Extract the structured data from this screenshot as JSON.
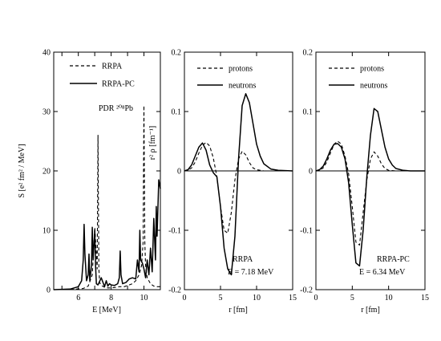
{
  "chart_data": [
    {
      "type": "line",
      "panel": "a",
      "xlabel": "E [MeV]",
      "ylabel": "S [e² fm² / MeV]",
      "xlim": [
        4.5,
        11
      ],
      "ylim": [
        0,
        40
      ],
      "xticks": [
        5,
        6,
        7,
        8,
        9,
        10
      ],
      "xtick_labels": [
        "",
        "6",
        "",
        "8",
        "",
        "10"
      ],
      "yticks": [
        0,
        10,
        20,
        30,
        40
      ],
      "ytick_labels": [
        "0",
        "10",
        "20",
        "30",
        "40"
      ],
      "legend_position": "top-right",
      "annotation": "PDR ²⁰⁸Pb",
      "series": [
        {
          "name": "RRPA",
          "style": "dashed",
          "x": [
            4.5,
            5.5,
            6.3,
            6.6,
            6.85,
            7.0,
            7.1,
            7.15,
            7.2,
            7.25,
            7.3,
            7.4,
            7.6,
            7.8,
            8.0,
            8.3,
            8.5,
            8.8,
            9.0,
            9.3,
            9.5,
            9.7,
            9.85,
            9.95,
            10.0,
            10.05,
            10.1,
            10.2,
            10.4,
            10.6,
            10.8,
            11.0
          ],
          "values": [
            0,
            0,
            0.2,
            0.6,
            2.5,
            10.5,
            6.0,
            3.5,
            26,
            3.5,
            1.2,
            0.7,
            0.4,
            0.3,
            0.3,
            0.4,
            0.5,
            0.5,
            0.7,
            1.0,
            1.5,
            2.5,
            4.0,
            8.0,
            31,
            8.0,
            4.0,
            2.0,
            1.0,
            0.6,
            0.5,
            0.5
          ]
        },
        {
          "name": "RRPA-PC",
          "style": "solid",
          "x": [
            4.5,
            5.5,
            6.0,
            6.2,
            6.3,
            6.35,
            6.4,
            6.5,
            6.6,
            6.65,
            6.7,
            6.8,
            6.85,
            6.9,
            7.0,
            7.05,
            7.1,
            7.2,
            7.4,
            7.6,
            7.7,
            7.8,
            7.9,
            8.0,
            8.2,
            8.4,
            8.5,
            8.55,
            8.6,
            8.7,
            8.9,
            9.1,
            9.3,
            9.5,
            9.6,
            9.7,
            9.75,
            9.8,
            9.9,
            10.0,
            10.1,
            10.2,
            10.3,
            10.4,
            10.5,
            10.6,
            10.7,
            10.75,
            10.8,
            10.9,
            11.0
          ],
          "values": [
            0,
            0.1,
            0.5,
            1.5,
            5.0,
            11.0,
            6.0,
            1.5,
            2.5,
            6.0,
            1.5,
            4.0,
            10.5,
            5.0,
            10.0,
            4.0,
            1.0,
            0.8,
            2.0,
            0.5,
            1.5,
            0.6,
            1.0,
            0.8,
            0.7,
            1.0,
            2.0,
            6.5,
            2.5,
            1.0,
            1.2,
            1.8,
            2.0,
            1.8,
            5.0,
            3.0,
            10.0,
            5.0,
            4.5,
            3.5,
            2.0,
            5.0,
            2.5,
            7.0,
            3.0,
            12.0,
            5.0,
            14.0,
            9.0,
            18.5,
            17.0
          ]
        }
      ]
    },
    {
      "type": "line",
      "panel": "b",
      "xlabel": "r [fm]",
      "ylabel": "r² ρ [fm⁻¹]",
      "xlim": [
        0,
        15
      ],
      "ylim": [
        -0.2,
        0.2
      ],
      "xticks": [
        0,
        5,
        10,
        15
      ],
      "xtick_labels": [
        "0",
        "5",
        "10",
        "15"
      ],
      "yticks": [
        -0.2,
        -0.1,
        0,
        0.1,
        0.2
      ],
      "ytick_labels": [
        "-0.2",
        "-0.1",
        "0",
        "0.1",
        "0.2"
      ],
      "legend_position": "top-left",
      "annotation": [
        "RRPA",
        "E = 7.18 MeV"
      ],
      "series": [
        {
          "name": "protons",
          "style": "dashed",
          "x": [
            0,
            0.5,
            1.0,
            1.5,
            2.0,
            2.5,
            3.0,
            3.5,
            4.0,
            4.5,
            5.0,
            5.5,
            6.0,
            6.5,
            7.0,
            7.5,
            8.0,
            8.5,
            9.0,
            9.5,
            10.0,
            11.0,
            12.0,
            15.0
          ],
          "values": [
            0,
            0.001,
            0.005,
            0.015,
            0.03,
            0.043,
            0.048,
            0.042,
            0.022,
            -0.01,
            -0.06,
            -0.1,
            -0.105,
            -0.07,
            -0.015,
            0.02,
            0.033,
            0.027,
            0.014,
            0.005,
            0.002,
            0,
            0,
            0
          ]
        },
        {
          "name": "neutrons",
          "style": "solid",
          "x": [
            0,
            0.5,
            1.0,
            1.5,
            2.0,
            2.5,
            3.0,
            3.5,
            4.0,
            4.5,
            5.0,
            5.5,
            6.0,
            6.5,
            7.0,
            7.5,
            8.0,
            8.5,
            9.0,
            9.5,
            10.0,
            10.5,
            11.0,
            12.0,
            13.0,
            15.0
          ],
          "values": [
            0,
            0.002,
            0.01,
            0.025,
            0.04,
            0.047,
            0.035,
            0.01,
            -0.003,
            -0.01,
            -0.06,
            -0.13,
            -0.165,
            -0.175,
            -0.11,
            0.02,
            0.11,
            0.13,
            0.115,
            0.08,
            0.045,
            0.025,
            0.012,
            0.003,
            0.001,
            0
          ]
        }
      ]
    },
    {
      "type": "line",
      "panel": "c",
      "xlabel": "r [fm]",
      "ylabel": "",
      "xlim": [
        0,
        15
      ],
      "ylim": [
        -0.2,
        0.2
      ],
      "xticks": [
        0,
        5,
        10,
        15
      ],
      "xtick_labels": [
        "0",
        "5",
        "10",
        "15"
      ],
      "yticks": [
        -0.2,
        -0.1,
        0,
        0.1,
        0.2
      ],
      "ytick_labels": [
        "-0.2",
        "-0.1",
        "0",
        "0.1",
        "0.2"
      ],
      "legend_position": "top-left",
      "annotation": [
        "RRPA-PC",
        "E = 6.34 MeV"
      ],
      "series": [
        {
          "name": "protons",
          "style": "dashed",
          "x": [
            0,
            0.5,
            1.0,
            1.5,
            2.0,
            2.5,
            3.0,
            3.5,
            4.0,
            4.5,
            5.0,
            5.5,
            6.0,
            6.5,
            7.0,
            7.5,
            8.0,
            8.5,
            9.0,
            9.5,
            10.0,
            11.0,
            12.0,
            15.0
          ],
          "values": [
            0,
            0.001,
            0.005,
            0.015,
            0.03,
            0.045,
            0.05,
            0.045,
            0.025,
            -0.005,
            -0.06,
            -0.12,
            -0.125,
            -0.07,
            -0.015,
            0.02,
            0.032,
            0.025,
            0.012,
            0.004,
            0.001,
            0,
            0,
            0
          ]
        },
        {
          "name": "neutrons",
          "style": "solid",
          "x": [
            0,
            0.5,
            1.0,
            1.5,
            2.0,
            2.5,
            3.0,
            3.5,
            4.0,
            4.5,
            5.0,
            5.5,
            6.0,
            6.5,
            7.0,
            7.5,
            8.0,
            8.5,
            9.0,
            9.5,
            10.0,
            10.5,
            11.0,
            12.0,
            13.0,
            15.0
          ],
          "values": [
            0,
            0.002,
            0.008,
            0.02,
            0.035,
            0.045,
            0.046,
            0.04,
            0.02,
            -0.02,
            -0.09,
            -0.155,
            -0.16,
            -0.1,
            -0.01,
            0.06,
            0.105,
            0.1,
            0.07,
            0.04,
            0.02,
            0.01,
            0.004,
            0.001,
            0,
            0
          ]
        }
      ]
    }
  ]
}
